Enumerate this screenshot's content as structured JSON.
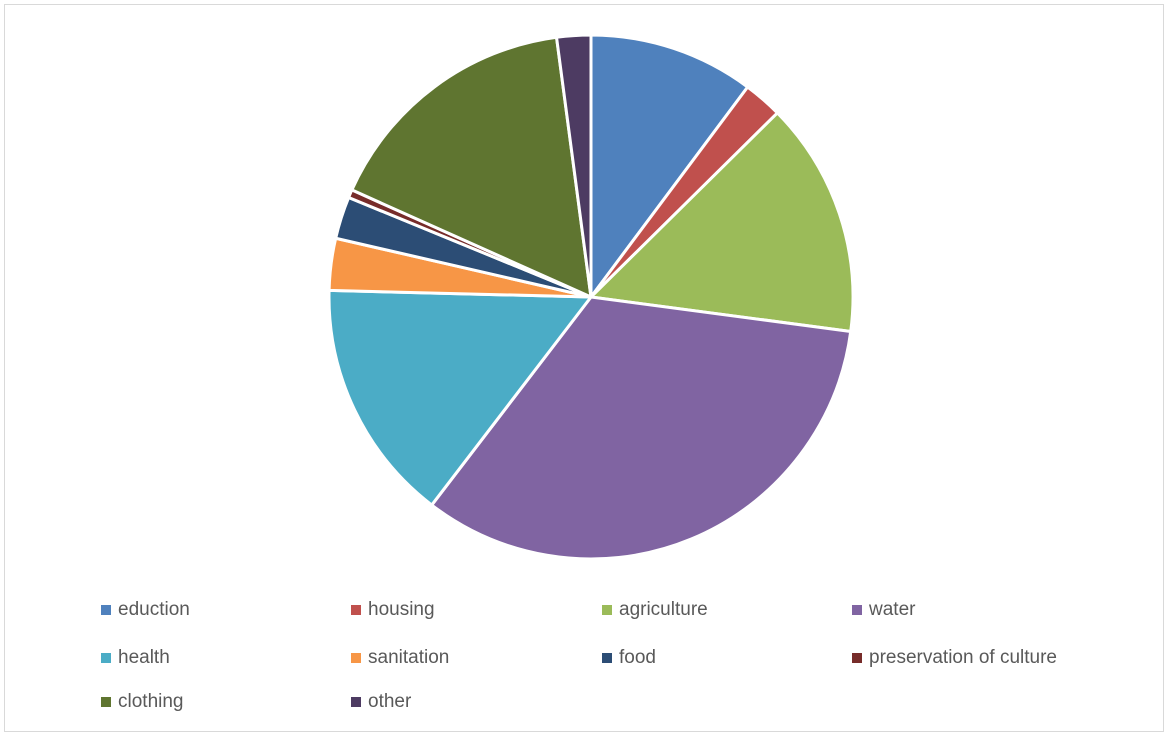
{
  "chart_data": {
    "type": "pie",
    "title": "",
    "legend_position": "bottom",
    "categories": [
      "eduction",
      "housing",
      "agriculture",
      "water",
      "health",
      "sanitation",
      "food",
      "preservation of culture",
      "clothing",
      "other"
    ],
    "values": [
      10.2,
      2.4,
      14.5,
      33.3,
      15.0,
      3.2,
      2.6,
      0.5,
      16.2,
      2.1
    ],
    "colors": [
      "#4f81bd",
      "#c0504d",
      "#9bbb59",
      "#8064a2",
      "#4bacc6",
      "#f79646",
      "#2c4d75",
      "#772c2a",
      "#5f7530",
      "#4d3b62"
    ]
  }
}
